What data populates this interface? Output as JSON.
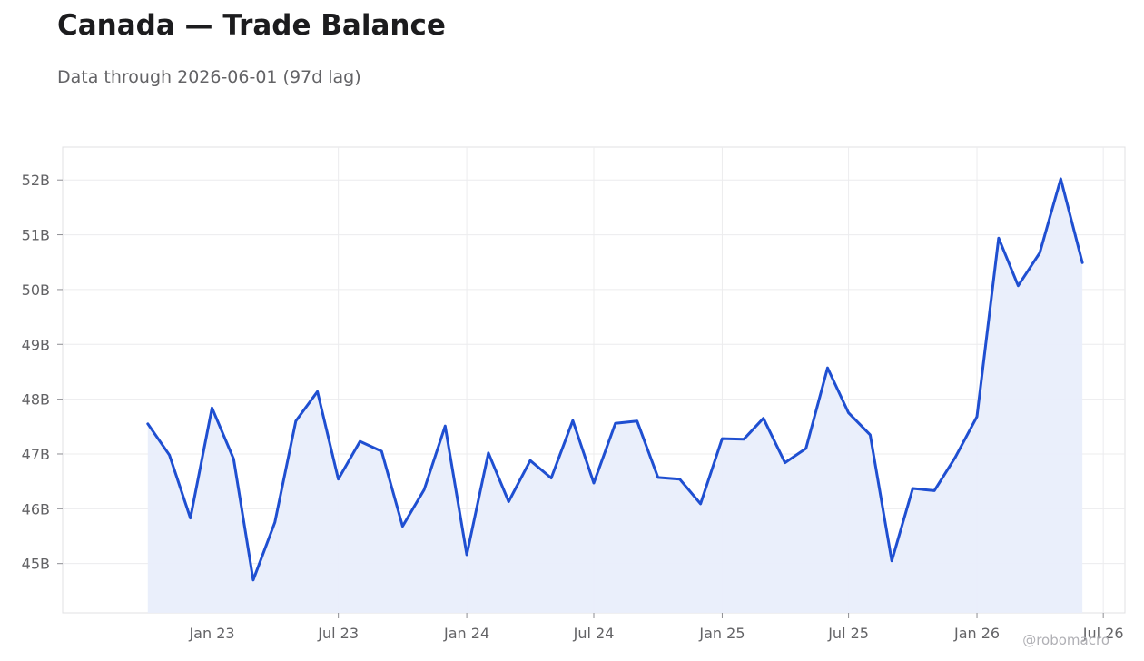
{
  "title": "Canada — Trade Balance",
  "subtitle": "Data through 2026-06-01 (97d lag)",
  "watermark": "@robomacro",
  "colors": {
    "line": "#1f4fd1",
    "fill": "#e9eefb",
    "grid": "#ececee",
    "axis": "#e0e0e3"
  },
  "chart_data": {
    "type": "area",
    "title": "Canada — Trade Balance",
    "xlabel": "",
    "ylabel": "",
    "grid": true,
    "ylim": [
      44.1,
      52.6
    ],
    "xlim": [
      "2022-06-01",
      "2026-08-01"
    ],
    "y_ticks": [
      {
        "value": 45,
        "label": "45B"
      },
      {
        "value": 46,
        "label": "46B"
      },
      {
        "value": 47,
        "label": "47B"
      },
      {
        "value": 48,
        "label": "48B"
      },
      {
        "value": 49,
        "label": "49B"
      },
      {
        "value": 50,
        "label": "50B"
      },
      {
        "value": 51,
        "label": "51B"
      },
      {
        "value": 52,
        "label": "52B"
      }
    ],
    "x_ticks": [
      {
        "date": "2023-01-01",
        "label": "Jan 23"
      },
      {
        "date": "2023-07-01",
        "label": "Jul 23"
      },
      {
        "date": "2024-01-01",
        "label": "Jan 24"
      },
      {
        "date": "2024-07-01",
        "label": "Jul 24"
      },
      {
        "date": "2025-01-01",
        "label": "Jan 25"
      },
      {
        "date": "2025-07-01",
        "label": "Jul 25"
      },
      {
        "date": "2026-01-01",
        "label": "Jan 26"
      },
      {
        "date": "2026-07-01",
        "label": "Jul 26"
      }
    ],
    "series": [
      {
        "x": [
          "2022-10-01",
          "2022-11-01",
          "2022-12-01",
          "2023-01-01",
          "2023-02-01",
          "2023-03-01",
          "2023-04-01",
          "2023-05-01",
          "2023-06-01",
          "2023-07-01",
          "2023-08-01",
          "2023-09-01",
          "2023-10-01",
          "2023-11-01",
          "2023-12-01",
          "2024-01-01",
          "2024-02-01",
          "2024-03-01",
          "2024-04-01",
          "2024-05-01",
          "2024-06-01",
          "2024-07-01",
          "2024-08-01",
          "2024-09-01",
          "2024-10-01",
          "2024-11-01",
          "2024-12-01",
          "2025-01-01",
          "2025-02-01",
          "2025-03-01",
          "2025-04-01",
          "2025-05-01",
          "2025-06-01",
          "2025-07-01",
          "2025-08-01",
          "2025-09-01",
          "2025-10-01",
          "2025-11-01",
          "2025-12-01",
          "2026-01-01",
          "2026-02-01",
          "2026-03-01",
          "2026-04-01",
          "2026-05-01",
          "2026-06-01"
        ],
        "values": [
          47.55,
          46.98,
          45.83,
          47.84,
          46.91,
          44.7,
          45.75,
          47.6,
          48.14,
          46.54,
          47.23,
          47.05,
          45.68,
          46.35,
          47.51,
          45.16,
          47.02,
          46.13,
          46.88,
          46.56,
          47.61,
          46.47,
          47.56,
          47.6,
          46.57,
          46.54,
          46.09,
          47.28,
          47.27,
          47.65,
          46.84,
          47.1,
          48.57,
          47.75,
          47.35,
          45.05,
          46.37,
          46.33,
          46.94,
          47.68,
          50.94,
          50.07,
          50.67,
          52.02,
          50.49
        ]
      }
    ]
  }
}
